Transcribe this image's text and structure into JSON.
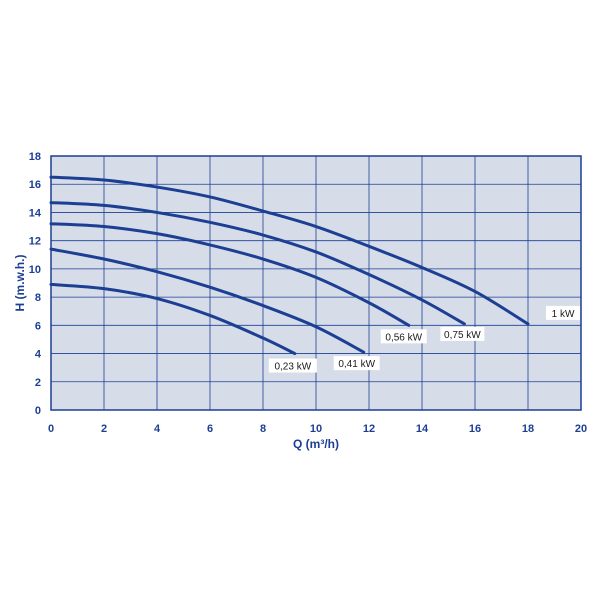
{
  "chart_data": {
    "type": "line",
    "title": "",
    "xlabel": "Q (m³/h)",
    "ylabel": "H (m.w.h.)",
    "xlim": [
      0,
      20
    ],
    "ylim": [
      0,
      18
    ],
    "x_ticks": [
      "0",
      "2",
      "4",
      "6",
      "8",
      "10",
      "12",
      "14",
      "16",
      "18",
      "20"
    ],
    "y_ticks": [
      "0",
      "2",
      "4",
      "6",
      "8",
      "10",
      "12",
      "14",
      "16",
      "18"
    ],
    "grid": true,
    "series": [
      {
        "name": "1 kW",
        "x": [
          0,
          2,
          4,
          6,
          8,
          10,
          12,
          14,
          16,
          18
        ],
        "y": [
          16.5,
          16.3,
          15.8,
          15.1,
          14.1,
          13.0,
          11.6,
          10.1,
          8.4,
          6.1
        ]
      },
      {
        "name": "0,75 kW",
        "x": [
          0,
          2,
          4,
          6,
          8,
          10,
          12,
          14,
          15.6
        ],
        "y": [
          14.7,
          14.5,
          14.0,
          13.3,
          12.4,
          11.2,
          9.6,
          7.8,
          6.1
        ]
      },
      {
        "name": "0,56 kW",
        "x": [
          0,
          2,
          4,
          6,
          8,
          10,
          12,
          13.5
        ],
        "y": [
          13.2,
          13.0,
          12.5,
          11.7,
          10.7,
          9.4,
          7.6,
          6.0
        ]
      },
      {
        "name": "0,41 kW",
        "x": [
          0,
          2,
          4,
          6,
          8,
          10,
          11.8
        ],
        "y": [
          11.4,
          10.7,
          9.8,
          8.7,
          7.4,
          5.9,
          4.1
        ]
      },
      {
        "name": "0,23 kW",
        "x": [
          0,
          2,
          4,
          6,
          8,
          9.2
        ],
        "y": [
          8.9,
          8.6,
          7.9,
          6.7,
          5.1,
          4.0
        ]
      }
    ],
    "colors": {
      "plot_background": "#d6dde8",
      "grid": "#1c3f94",
      "curve": "#1c3f94",
      "label_box": "#ffffff"
    }
  }
}
